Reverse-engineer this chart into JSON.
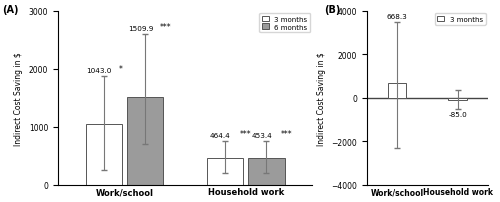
{
  "panel_A": {
    "categories": [
      "Work/school",
      "Household work"
    ],
    "bar_3m_values": [
      1043.0,
      464.4
    ],
    "bar_6m_values": [
      1509.9,
      453.4
    ],
    "err_3m_lo": [
      793.0,
      264.4
    ],
    "err_3m_hi": [
      827.0,
      285.6
    ],
    "err_6m_lo": [
      809.9,
      253.4
    ],
    "err_6m_hi": [
      1090.1,
      296.6
    ],
    "labels_3m": [
      "1043.0",
      "464.4"
    ],
    "labels_6m": [
      "1509.9",
      "453.4"
    ],
    "sig_3m": [
      "*",
      "***"
    ],
    "sig_6m": [
      "***",
      "***"
    ],
    "bar_3m_color": "#ffffff",
    "bar_6m_color": "#9b9b9b",
    "bar_edgecolor": "#555555",
    "ylim": [
      0,
      3000
    ],
    "yticks": [
      0,
      1000,
      2000,
      3000
    ],
    "ylabel": "Indirect Cost Saving in $",
    "panel_label": "(A)"
  },
  "panel_B": {
    "categories": [
      "Work/school",
      "Household work"
    ],
    "bar_3m_values": [
      668.3,
      -85.0
    ],
    "err_3m_lo": [
      2968.3,
      415.0
    ],
    "err_3m_hi": [
      2831.7,
      435.0
    ],
    "labels_3m": [
      "668.3",
      "-85.0"
    ],
    "bar_3m_color": "#ffffff",
    "bar_edgecolor": "#555555",
    "ylim": [
      -4000,
      4000
    ],
    "yticks": [
      -4000,
      -2000,
      0,
      2000,
      4000
    ],
    "ylabel": "Indirect Cost Saving in $",
    "panel_label": "(B)"
  },
  "legend_A": {
    "labels": [
      "3 months",
      "6 months"
    ],
    "colors": [
      "#ffffff",
      "#9b9b9b"
    ],
    "edgecolor": "#555555"
  },
  "legend_B": {
    "labels": [
      "3 months"
    ],
    "colors": [
      "#ffffff"
    ],
    "edgecolor": "#555555"
  }
}
